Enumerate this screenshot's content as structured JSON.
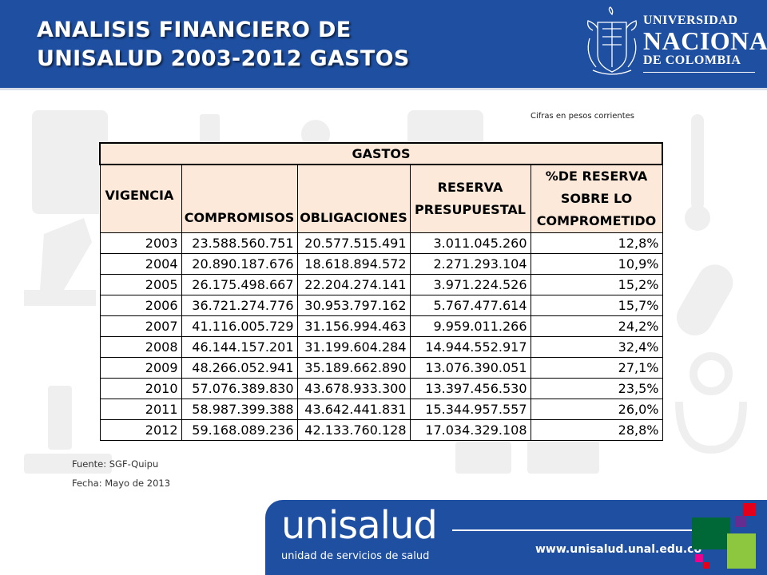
{
  "header": {
    "title_line1": "ANALISIS FINANCIERO DE",
    "title_line2": "UNISALUD 2003-2012  GASTOS",
    "logo": {
      "line1": "UNIVERSIDAD",
      "line2": "NACIONAL",
      "line3": "DE COLOMBIA",
      "icon": "coat-of-arms-icon"
    }
  },
  "note": "Cifras en pesos corrientes",
  "table": {
    "title": "GASTOS",
    "columns": [
      "VIGENCIA",
      "COMPROMISOS",
      "OBLIGACIONES",
      "RESERVA PRESUPUESTAL",
      "%DE RESERVA SOBRE LO COMPROMETIDO"
    ],
    "column_lines": {
      "reserva": [
        "RESERVA",
        "PRESUPUESTAL"
      ],
      "pct": [
        "%DE RESERVA",
        "SOBRE LO",
        "COMPROMETIDO"
      ]
    },
    "rows": [
      [
        "2003",
        "23.588.560.751",
        "20.577.515.491",
        "3.011.045.260",
        "12,8%"
      ],
      [
        "2004",
        "20.890.187.676",
        "18.618.894.572",
        "2.271.293.104",
        "10,9%"
      ],
      [
        "2005",
        "26.175.498.667",
        "22.204.274.141",
        "3.971.224.526",
        "15,2%"
      ],
      [
        "2006",
        "36.721.274.776",
        "30.953.797.162",
        "5.767.477.614",
        "15,7%"
      ],
      [
        "2007",
        "41.116.005.729",
        "31.156.994.463",
        "9.959.011.266",
        "24,2%"
      ],
      [
        "2008",
        "46.144.157.201",
        "31.199.604.284",
        "14.944.552.917",
        "32,4%"
      ],
      [
        "2009",
        "48.266.052.941",
        "35.189.662.890",
        "13.076.390.051",
        "27,1%"
      ],
      [
        "2010",
        "57.076.389.830",
        "43.678.933.300",
        "13.397.456.530",
        "23,5%"
      ],
      [
        "2011",
        "58.987.399.388",
        "43.642.441.831",
        "15.344.957.557",
        "26,0%"
      ],
      [
        "2012",
        "59.168.089.236",
        "42.133.760.128",
        "17.034.329.108",
        "28,8%"
      ]
    ]
  },
  "source": "Fuente: SGF-Quipu",
  "date": "Fecha: Mayo de 2013",
  "footer": {
    "brand": "unisalud",
    "subtitle": "unidad de servicios de salud",
    "url": "www.unisalud.unal.edu.co"
  },
  "colors": {
    "header_blue": "#1f4fa0",
    "table_header_fill": "#fde9d9",
    "accent_green": "#8dc63f",
    "accent_dark_green": "#006837",
    "accent_red": "#e2001a",
    "accent_purple": "#662d91",
    "accent_magenta": "#ec008c"
  }
}
